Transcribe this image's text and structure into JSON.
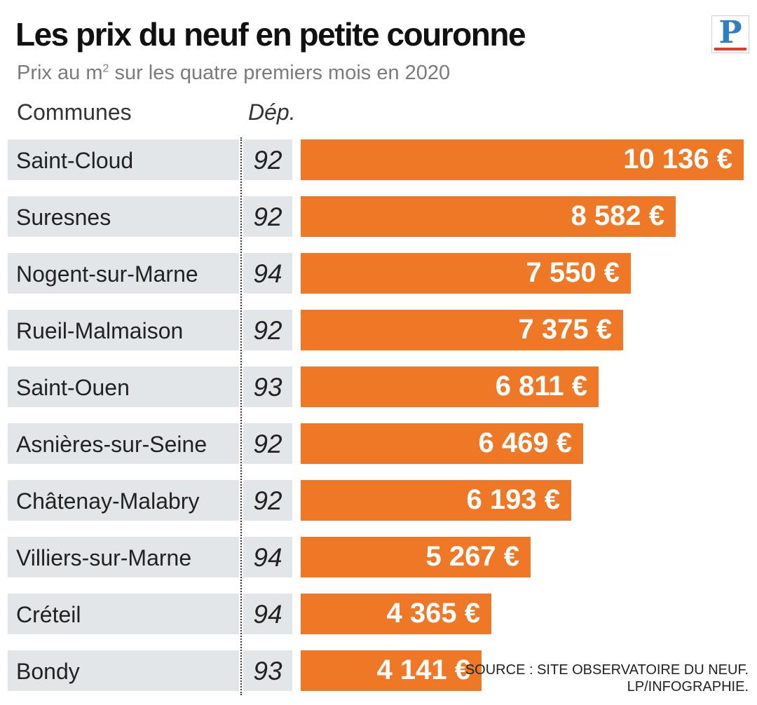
{
  "header": {
    "title": "Les prix du neuf en petite couronne",
    "subtitle_before": "Prix au m",
    "subtitle_sup": "2",
    "subtitle_after": " sur les quatre premiers mois en 2020",
    "logo_letter": "P"
  },
  "columns": {
    "commune": "Communes",
    "dep": "Dép."
  },
  "source": {
    "line1": "SOURCE : SITE OBSERVATOIRE DU NEUF.",
    "line2": "LP/INFOGRAPHIE."
  },
  "colors": {
    "bar": "#ef7826",
    "row_bg": "#e3e6e8",
    "logo_blue": "#2c7fc1",
    "logo_red": "#e4382e"
  },
  "chart_data": {
    "type": "bar",
    "orientation": "horizontal",
    "title": "Les prix du neuf en petite couronne",
    "subtitle": "Prix au m² sur les quatre premiers mois en 2020",
    "unit": "€",
    "xlim": [
      0,
      10136
    ],
    "categories": [
      "Saint-Cloud",
      "Suresnes",
      "Nogent-sur-Marne",
      "Rueil-Malmaison",
      "Saint-Ouen",
      "Asnières-sur-Seine",
      "Châtenay-Malabry",
      "Villiers-sur-Marne",
      "Créteil",
      "Bondy"
    ],
    "departments": [
      "92",
      "92",
      "94",
      "92",
      "93",
      "92",
      "92",
      "94",
      "94",
      "93"
    ],
    "values": [
      10136,
      8582,
      7550,
      7375,
      6811,
      6469,
      6193,
      5267,
      4365,
      4141
    ],
    "labels": [
      "10 136 €",
      "8 582 €",
      "7 550 €",
      "7 375 €",
      "6 811 €",
      "6 469 €",
      "6 193 €",
      "5 267 €",
      "4 365 €",
      "4 141 €"
    ]
  }
}
